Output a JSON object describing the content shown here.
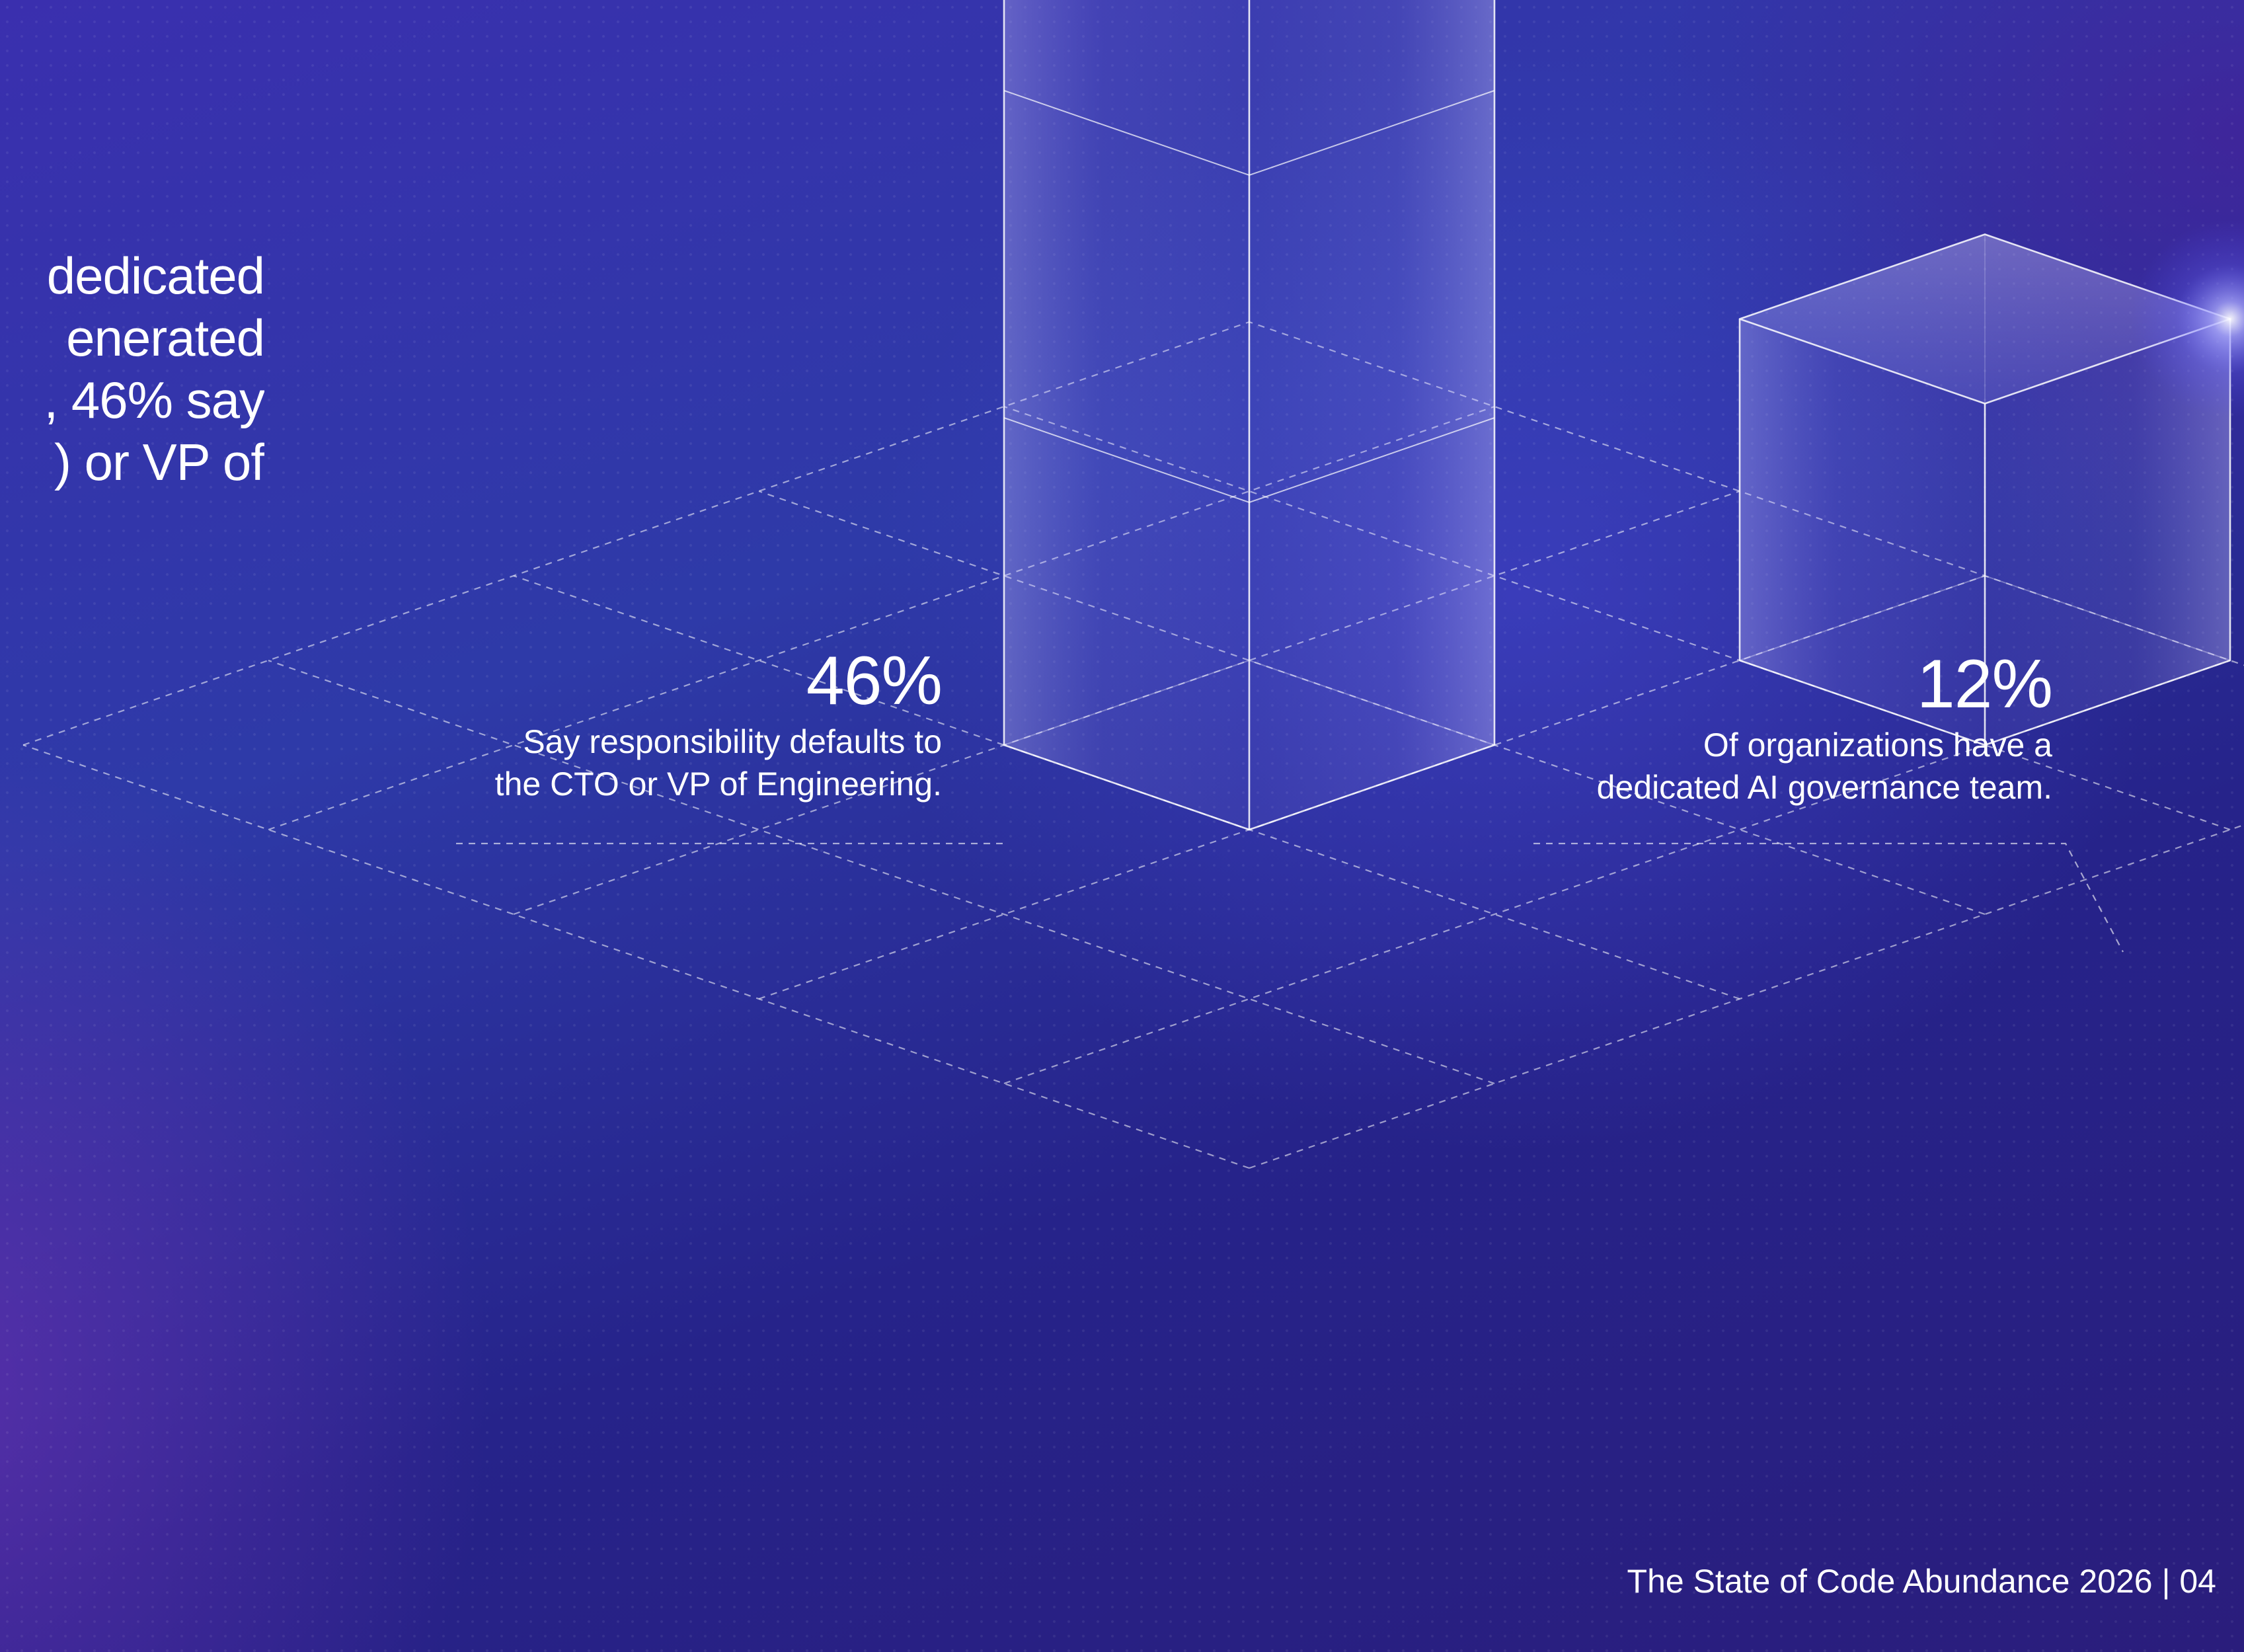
{
  "intro_text": {
    "lines": [
      "dedicated",
      "enerated",
      ", 46% say",
      ") or VP of"
    ]
  },
  "chart_data": {
    "type": "bar",
    "style": "isometric-3d",
    "categories": [
      "Responsibility defaults to CTO or VP of Engineering",
      "Dedicated AI governance team"
    ],
    "values": [
      46,
      12
    ],
    "unit": "%",
    "title": "",
    "labels": [
      {
        "value_text": "46%",
        "description": "Say responsibility defaults to\nthe CTO or VP of Engineering."
      },
      {
        "value_text": "12%",
        "description": "Of organizations have a\ndedicated AI governance team."
      }
    ],
    "grid": true
  },
  "footer": {
    "text": "The State of Code Abundance 2026 | 04"
  },
  "colors": {
    "background": "#2b2a9a",
    "accent_glow": "#7d7dff",
    "text": "#ffffff"
  }
}
